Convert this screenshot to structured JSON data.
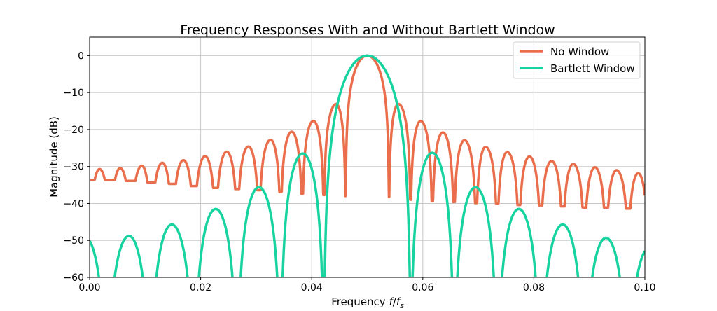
{
  "chart_data": {
    "type": "line",
    "title": "Frequency Responses With and Without Bartlett Window",
    "xlabel": {
      "prefix": "Frequency ",
      "f": "f",
      "slash": "/",
      "fs": "f",
      "sub": "s"
    },
    "ylabel": "Magnitude (dB)",
    "xlim": [
      0,
      0.1
    ],
    "ylim": [
      -60,
      5
    ],
    "grid": true,
    "legend_position": "top-right",
    "xticks": [
      0,
      0.02,
      0.04,
      0.06,
      0.08,
      0.1
    ],
    "xtick_labels": [
      "0.00",
      "0.02",
      "0.04",
      "0.06",
      "0.08",
      "0.10"
    ],
    "yticks": [
      0,
      -10,
      -20,
      -30,
      -40,
      -50,
      -60
    ],
    "ytick_labels": [
      "0",
      "−10",
      "−20",
      "−30",
      "−40",
      "−50",
      "−60"
    ],
    "series": [
      {
        "name": "No Window",
        "color": "#EA6E4B",
        "points": [
          [
            0.0,
            -33.6,
            "null"
          ],
          [
            0.0018,
            -30.7,
            "peak"
          ],
          [
            0.0037,
            -33.6,
            "null"
          ],
          [
            0.0055,
            -30.4,
            "peak"
          ],
          [
            0.0074,
            -33.9,
            "null"
          ],
          [
            0.0094,
            -29.8,
            "peak"
          ],
          [
            0.0111,
            -34.3,
            "null"
          ],
          [
            0.0131,
            -29.0,
            "peak"
          ],
          [
            0.0149,
            -34.7,
            "null"
          ],
          [
            0.0169,
            -28.3,
            "peak"
          ],
          [
            0.0188,
            -35.3,
            "null"
          ],
          [
            0.0208,
            -27.2,
            "peak"
          ],
          [
            0.0227,
            -35.8,
            "null"
          ],
          [
            0.0247,
            -26.0,
            "peak"
          ],
          [
            0.0266,
            -36.1,
            "null"
          ],
          [
            0.0286,
            -24.6,
            "peak"
          ],
          [
            0.0305,
            -36.4,
            "null"
          ],
          [
            0.0326,
            -22.8,
            "peak"
          ],
          [
            0.0344,
            -36.9,
            "null"
          ],
          [
            0.0364,
            -20.6,
            "peak"
          ],
          [
            0.0383,
            -37.4,
            "null"
          ],
          [
            0.0403,
            -17.7,
            "peak"
          ],
          [
            0.0422,
            -37.7,
            "null"
          ],
          [
            0.0444,
            -13.1,
            "peak"
          ],
          [
            0.0461,
            -38.0,
            "null"
          ],
          [
            0.05,
            0.0,
            "peak"
          ],
          [
            0.0539,
            -38.3,
            "null"
          ],
          [
            0.0556,
            -13.1,
            "peak"
          ],
          [
            0.0578,
            -39.0,
            "null"
          ],
          [
            0.0596,
            -17.7,
            "peak"
          ],
          [
            0.0617,
            -39.3,
            "null"
          ],
          [
            0.0636,
            -20.8,
            "peak"
          ],
          [
            0.0656,
            -39.6,
            "null"
          ],
          [
            0.0675,
            -22.9,
            "peak"
          ],
          [
            0.0696,
            -39.9,
            "null"
          ],
          [
            0.0713,
            -24.7,
            "peak"
          ],
          [
            0.0734,
            -40.0,
            "null"
          ],
          [
            0.0752,
            -26.1,
            "peak"
          ],
          [
            0.0773,
            -40.4,
            "null"
          ],
          [
            0.0792,
            -27.3,
            "peak"
          ],
          [
            0.0812,
            -40.5,
            "null"
          ],
          [
            0.0832,
            -28.5,
            "peak"
          ],
          [
            0.0852,
            -40.8,
            "null"
          ],
          [
            0.0871,
            -29.3,
            "peak"
          ],
          [
            0.0891,
            -41.1,
            "null"
          ],
          [
            0.091,
            -30.2,
            "peak"
          ],
          [
            0.093,
            -41.1,
            "null"
          ],
          [
            0.0949,
            -31.0,
            "peak"
          ],
          [
            0.097,
            -41.4,
            "null"
          ],
          [
            0.0988,
            -31.8,
            "peak"
          ],
          [
            0.1,
            -35.5,
            "edge"
          ]
        ]
      },
      {
        "name": "Bartlett Window",
        "color": "#17D3A0",
        "points": [
          [
            0.0,
            -50.1,
            "edge"
          ],
          [
            0.0031,
            null,
            "null"
          ],
          [
            0.0071,
            -48.8,
            "peak"
          ],
          [
            0.0109,
            null,
            "null"
          ],
          [
            0.0148,
            -45.7,
            "peak"
          ],
          [
            0.0188,
            null,
            "null"
          ],
          [
            0.0227,
            -41.5,
            "peak"
          ],
          [
            0.0266,
            null,
            "null"
          ],
          [
            0.0305,
            -35.6,
            "peak"
          ],
          [
            0.0344,
            null,
            "null"
          ],
          [
            0.0384,
            -26.5,
            "peak"
          ],
          [
            0.0422,
            null,
            "null"
          ],
          [
            0.05,
            0.0,
            "peak"
          ],
          [
            0.0578,
            null,
            "null"
          ],
          [
            0.0617,
            -26.3,
            "peak"
          ],
          [
            0.0656,
            null,
            "null"
          ],
          [
            0.0695,
            -35.6,
            "peak"
          ],
          [
            0.0734,
            null,
            "null"
          ],
          [
            0.0773,
            -41.5,
            "peak"
          ],
          [
            0.0812,
            null,
            "null"
          ],
          [
            0.0852,
            -45.7,
            "peak"
          ],
          [
            0.0891,
            null,
            "null"
          ],
          [
            0.093,
            -49.3,
            "peak"
          ],
          [
            0.0969,
            null,
            "null"
          ],
          [
            0.1,
            -52.9,
            "edge"
          ]
        ]
      }
    ]
  }
}
